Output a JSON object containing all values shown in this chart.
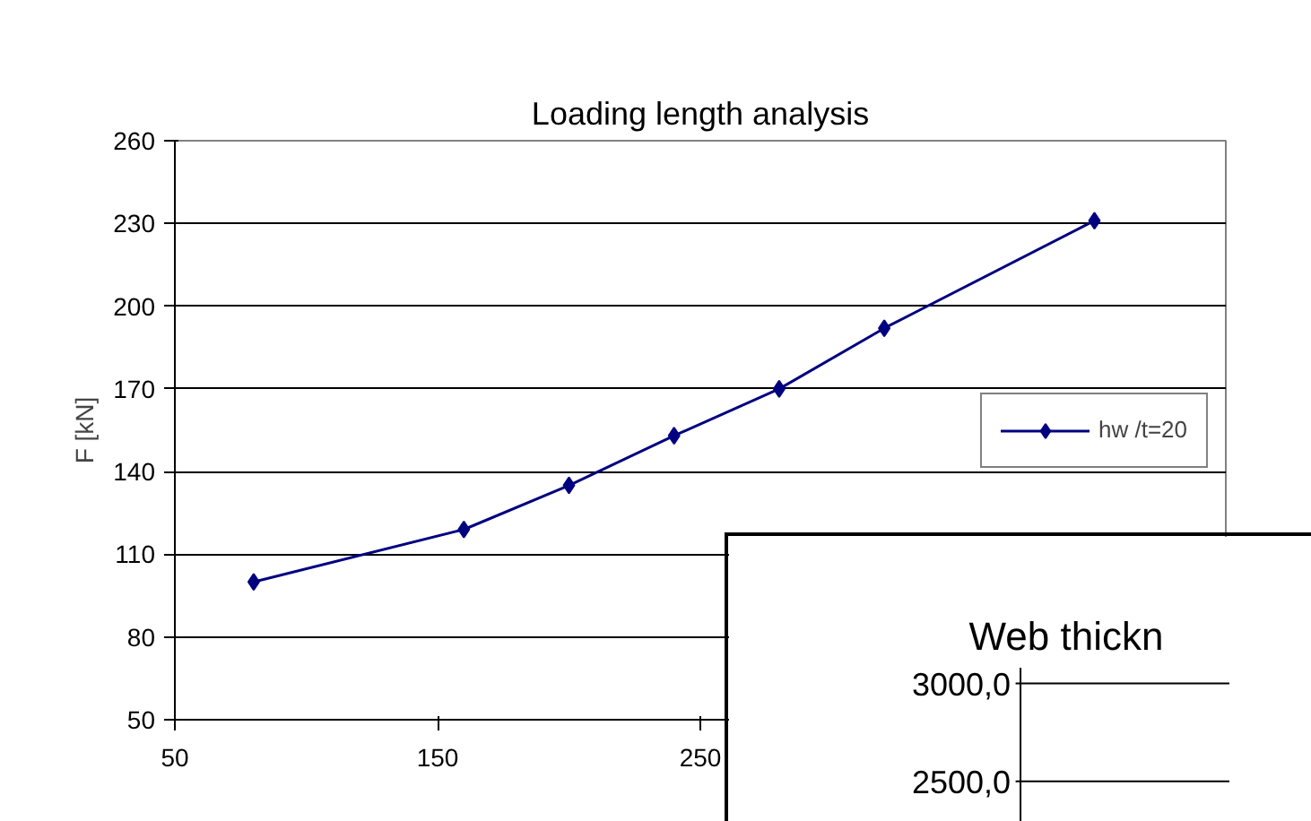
{
  "chart_data": [
    {
      "type": "line",
      "title": "Loading length analysis",
      "ylabel": "F [kN]",
      "x": [
        80,
        160,
        200,
        240,
        280,
        320,
        400
      ],
      "series": [
        {
          "name": "hw /t=20",
          "color": "#000080",
          "values": [
            100,
            119,
            135,
            153,
            170,
            192,
            231
          ]
        }
      ],
      "xlim": [
        50,
        450
      ],
      "xticks": [
        50,
        150,
        250
      ],
      "ylim": [
        50,
        260
      ],
      "yticks": [
        50,
        80,
        110,
        140,
        170,
        200,
        230,
        260
      ],
      "grid": "y",
      "legend": "right",
      "marker": "diamond",
      "line_style": "solid"
    },
    {
      "type": "other",
      "title": "Web thickn",
      "annotations": [
        "3000,0",
        "2500,0"
      ]
    }
  ]
}
